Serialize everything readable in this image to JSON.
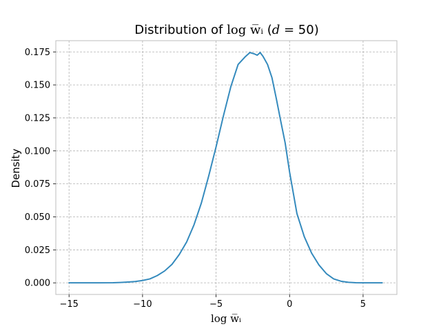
{
  "chart_data": {
    "type": "line",
    "title": {
      "prefix": "Distribution of ",
      "math": "log w̅ᵢ",
      "open_paren": " (",
      "d_var": "d",
      "eq": " = ",
      "d_value": "50",
      "close_paren": ")"
    },
    "xlabel": "log w̅ᵢ",
    "ylabel": "Density",
    "xlim": [
      -15.9,
      7.3
    ],
    "ylim": [
      -0.0088,
      0.1835
    ],
    "grid": true,
    "xticks": [
      {
        "value": -15,
        "label": "−15"
      },
      {
        "value": -10,
        "label": "−10"
      },
      {
        "value": -5,
        "label": "−5"
      },
      {
        "value": 0,
        "label": "0"
      },
      {
        "value": 5,
        "label": "5"
      }
    ],
    "yticks": [
      {
        "value": 0.0,
        "label": "0.000"
      },
      {
        "value": 0.025,
        "label": "0.025"
      },
      {
        "value": 0.05,
        "label": "0.050"
      },
      {
        "value": 0.075,
        "label": "0.075"
      },
      {
        "value": 0.1,
        "label": "0.100"
      },
      {
        "value": 0.125,
        "label": "0.125"
      },
      {
        "value": 0.15,
        "label": "0.150"
      },
      {
        "value": 0.175,
        "label": "0.175"
      }
    ],
    "series": [
      {
        "color": "#348abd",
        "x": [
          -15.0,
          -14.0,
          -13.0,
          -12.0,
          -11.5,
          -11.0,
          -10.5,
          -10.0,
          -9.5,
          -9.0,
          -8.5,
          -8.0,
          -7.5,
          -7.0,
          -6.5,
          -6.0,
          -5.5,
          -5.0,
          -4.5,
          -4.0,
          -3.5,
          -3.0,
          -2.7,
          -2.4,
          -2.2,
          -2.0,
          -1.8,
          -1.5,
          -1.2,
          -0.9,
          -0.6,
          -0.3,
          0.0,
          0.5,
          1.0,
          1.5,
          2.0,
          2.5,
          3.0,
          3.5,
          4.0,
          4.5,
          5.0,
          5.5,
          6.3
        ],
        "y": [
          0.0,
          0.0,
          0.0,
          0.0001,
          0.0003,
          0.0006,
          0.001,
          0.0018,
          0.003,
          0.0055,
          0.009,
          0.014,
          0.0215,
          0.031,
          0.044,
          0.0605,
          0.081,
          0.103,
          0.1265,
          0.1485,
          0.1655,
          0.1715,
          0.1745,
          0.1735,
          0.1725,
          0.1745,
          0.1715,
          0.1655,
          0.1555,
          0.1395,
          0.1225,
          0.106,
          0.084,
          0.0525,
          0.035,
          0.0225,
          0.0135,
          0.007,
          0.003,
          0.0012,
          0.0004,
          0.0001,
          0.0,
          0.0,
          0.0
        ]
      }
    ]
  }
}
